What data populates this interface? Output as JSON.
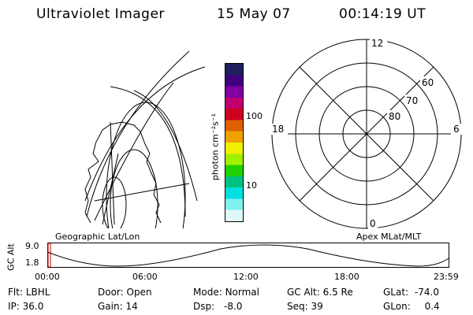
{
  "header": {
    "title": "Ultraviolet Imager",
    "date": "15 May 07",
    "time": "00:14:19 UT"
  },
  "colorbar": {
    "unit_label": "photon cm⁻²s⁻¹",
    "ticks": [
      "100",
      "10"
    ],
    "colors": [
      "#202060",
      "#400080",
      "#8000a0",
      "#c00070",
      "#d00020",
      "#e06000",
      "#f0a000",
      "#f0f000",
      "#a0f000",
      "#20d000",
      "#00c080",
      "#00e0e0",
      "#80f0f0",
      "#e0f8f8"
    ]
  },
  "geo_panel": {
    "caption": "Geographic Lat/Lon"
  },
  "polar_panel": {
    "caption": "Apex MLat/MLT",
    "mlt_labels": {
      "top": "12",
      "left": "18",
      "right": "6",
      "bottom": "0"
    },
    "lat_labels": [
      "60",
      "70",
      "80"
    ]
  },
  "altitude_plot": {
    "ylabel": "GC Alt",
    "yticks": [
      "9.0",
      "1.8"
    ],
    "xticks": [
      "00:00",
      "06:00",
      "12:00",
      "18:00",
      "23:59"
    ]
  },
  "info": {
    "flt": {
      "label": "Flt:",
      "value": "LBHL"
    },
    "ip": {
      "label": "IP:",
      "value": "36.0"
    },
    "door": {
      "label": "Door:",
      "value": "Open"
    },
    "gain": {
      "label": "Gain:",
      "value": "14"
    },
    "mode": {
      "label": "Mode:",
      "value": "Normal"
    },
    "dsp": {
      "label": "Dsp:",
      "value": "-8.0"
    },
    "gcalt": {
      "label": "GC Alt:",
      "value": "6.5 Re"
    },
    "seq": {
      "label": "Seq:",
      "value": "39"
    },
    "glat": {
      "label": "GLat:",
      "value": "-74.0"
    },
    "glon": {
      "label": "GLon:",
      "value": "0.4"
    }
  }
}
